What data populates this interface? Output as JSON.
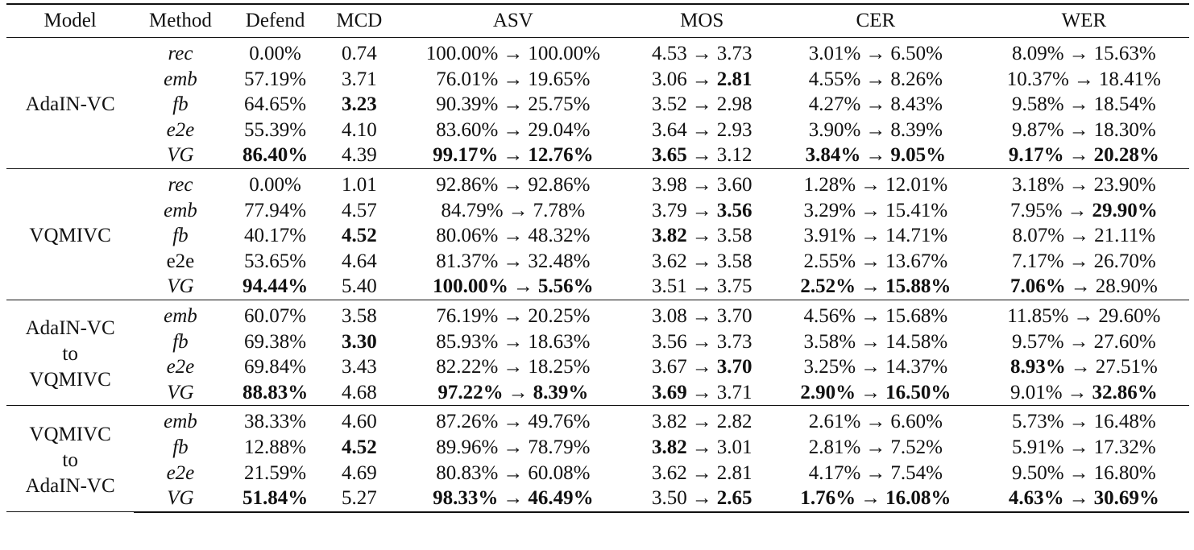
{
  "headers": [
    "Model",
    "Method",
    "Defend",
    "MCD",
    "ASV",
    "MOS",
    "CER",
    "WER"
  ],
  "groups": [
    {
      "model": [
        "AdaIN-VC"
      ],
      "rows": [
        {
          "method": "rec",
          "italic": true,
          "defend": "0.00%",
          "mcd": "0.74",
          "asv": [
            "100.00%",
            "100.00%"
          ],
          "mos": [
            "4.53",
            "3.73"
          ],
          "cer": [
            "3.01%",
            "6.50%"
          ],
          "wer": [
            "8.09%",
            "15.63%"
          ]
        },
        {
          "method": "emb",
          "italic": true,
          "defend": "57.19%",
          "mcd": "3.71",
          "asv": [
            "76.01%",
            "19.65%"
          ],
          "mos": [
            "3.06",
            "2.81"
          ],
          "cer": [
            "4.55%",
            "8.26%"
          ],
          "wer": [
            "10.37%",
            "18.41%"
          ]
        },
        {
          "method": "fb",
          "italic": true,
          "defend": "64.65%",
          "mcd": "3.23",
          "asv": [
            "90.39%",
            "25.75%"
          ],
          "mos": [
            "3.52",
            "2.98"
          ],
          "cer": [
            "4.27%",
            "8.43%"
          ],
          "wer": [
            "9.58%",
            "18.54%"
          ]
        },
        {
          "method": "e2e",
          "italic": true,
          "defend": "55.39%",
          "mcd": "4.10",
          "asv": [
            "83.60%",
            "29.04%"
          ],
          "mos": [
            "3.64",
            "2.93"
          ],
          "cer": [
            "3.90%",
            "8.39%"
          ],
          "wer": [
            "9.87%",
            "18.30%"
          ]
        },
        {
          "method": "VG",
          "italic": true,
          "defend": "86.40%",
          "mcd": "4.39",
          "asv": [
            "99.17%",
            "12.76%"
          ],
          "mos": [
            "3.65",
            "3.12"
          ],
          "cer": [
            "3.84%",
            "9.05%"
          ],
          "wer": [
            "9.17%",
            "20.28%"
          ]
        }
      ]
    },
    {
      "model": [
        "VQMIVC"
      ],
      "rows": [
        {
          "method": "rec",
          "italic": true,
          "defend": "0.00%",
          "mcd": "1.01",
          "asv": [
            "92.86%",
            "92.86%"
          ],
          "mos": [
            "3.98",
            "3.60"
          ],
          "cer": [
            "1.28%",
            "12.01%"
          ],
          "wer": [
            "3.18%",
            "23.90%"
          ]
        },
        {
          "method": "emb",
          "italic": true,
          "defend": "77.94%",
          "mcd": "4.57",
          "asv": [
            "84.79%",
            "7.78%"
          ],
          "mos": [
            "3.79",
            "3.56"
          ],
          "cer": [
            "3.29%",
            "15.41%"
          ],
          "wer": [
            "7.95%",
            "29.90%"
          ]
        },
        {
          "method": "fb",
          "italic": true,
          "defend": "40.17%",
          "mcd": "4.52",
          "asv": [
            "80.06%",
            "48.32%"
          ],
          "mos": [
            "3.82",
            "3.58"
          ],
          "cer": [
            "3.91%",
            "14.71%"
          ],
          "wer": [
            "8.07%",
            "21.11%"
          ]
        },
        {
          "method": "e2e",
          "italic": false,
          "defend": "53.65%",
          "mcd": "4.64",
          "asv": [
            "81.37%",
            "32.48%"
          ],
          "mos": [
            "3.62",
            "3.58"
          ],
          "cer": [
            "2.55%",
            "13.67%"
          ],
          "wer": [
            "7.17%",
            "26.70%"
          ]
        },
        {
          "method": "VG",
          "italic": true,
          "defend": "94.44%",
          "mcd": "5.40",
          "asv": [
            "100.00%",
            "5.56%"
          ],
          "mos": [
            "3.51",
            "3.75"
          ],
          "cer": [
            "2.52%",
            "15.88%"
          ],
          "wer": [
            "7.06%",
            "28.90%"
          ]
        }
      ]
    },
    {
      "model": [
        "AdaIN-VC",
        "to",
        "VQMIVC"
      ],
      "rows": [
        {
          "method": "emb",
          "italic": true,
          "defend": "60.07%",
          "mcd": "3.58",
          "asv": [
            "76.19%",
            "20.25%"
          ],
          "mos": [
            "3.08",
            "3.70"
          ],
          "cer": [
            "4.56%",
            "15.68%"
          ],
          "wer": [
            "11.85%",
            "29.60%"
          ]
        },
        {
          "method": "fb",
          "italic": true,
          "defend": "69.38%",
          "mcd": "3.30",
          "asv": [
            "85.93%",
            "18.63%"
          ],
          "mos": [
            "3.56",
            "3.73"
          ],
          "cer": [
            "3.58%",
            "14.58%"
          ],
          "wer": [
            "9.57%",
            "27.60%"
          ]
        },
        {
          "method": "e2e",
          "italic": true,
          "defend": "69.84%",
          "mcd": "3.43",
          "asv": [
            "82.22%",
            "18.25%"
          ],
          "mos": [
            "3.67",
            "3.70"
          ],
          "cer": [
            "3.25%",
            "14.37%"
          ],
          "wer": [
            "8.93%",
            "27.51%"
          ]
        },
        {
          "method": "VG",
          "italic": true,
          "defend": "88.83%",
          "mcd": "4.68",
          "asv": [
            "97.22%",
            "8.39%"
          ],
          "mos": [
            "3.69",
            "3.71"
          ],
          "cer": [
            "2.90%",
            "16.50%"
          ],
          "wer": [
            "9.01%",
            "32.86%"
          ]
        }
      ]
    },
    {
      "model": [
        "VQMIVC",
        "to",
        "AdaIN-VC"
      ],
      "rows": [
        {
          "method": "emb",
          "italic": true,
          "defend": "38.33%",
          "mcd": "4.60",
          "asv": [
            "87.26%",
            "49.76%"
          ],
          "mos": [
            "3.82",
            "2.82"
          ],
          "cer": [
            "2.61%",
            "6.60%"
          ],
          "wer": [
            "5.73%",
            "16.48%"
          ]
        },
        {
          "method": "fb",
          "italic": true,
          "defend": "12.88%",
          "mcd": "4.52",
          "asv": [
            "89.96%",
            "78.79%"
          ],
          "mos": [
            "3.82",
            "3.01"
          ],
          "cer": [
            "2.81%",
            "7.52%"
          ],
          "wer": [
            "5.91%",
            "17.32%"
          ]
        },
        {
          "method": "e2e",
          "italic": true,
          "defend": "21.59%",
          "mcd": "4.69",
          "asv": [
            "80.83%",
            "60.08%"
          ],
          "mos": [
            "3.62",
            "2.81"
          ],
          "cer": [
            "4.17%",
            "7.54%"
          ],
          "wer": [
            "9.50%",
            "16.80%"
          ]
        },
        {
          "method": "VG",
          "italic": true,
          "defend": "51.84%",
          "mcd": "5.27",
          "asv": [
            "98.33%",
            "46.49%"
          ],
          "mos": [
            "3.50",
            "2.65"
          ],
          "cer": [
            "1.76%",
            "16.08%"
          ],
          "wer": [
            "4.63%",
            "30.69%"
          ]
        }
      ]
    }
  ],
  "bold": [
    "0.1.mos.1",
    "0.2.mcd",
    "0.4.defend",
    "0.4.asv.0",
    "0.4.asv.1",
    "0.4.mos.0",
    "0.4.cer.0",
    "0.4.cer.1",
    "0.4.wer.0",
    "0.4.wer.1",
    "1.1.mos.1",
    "1.1.wer.1",
    "1.2.mcd",
    "1.2.mos.0",
    "1.4.defend",
    "1.4.asv.0",
    "1.4.asv.1",
    "1.4.cer.0",
    "1.4.cer.1",
    "1.4.wer.0",
    "2.1.mcd",
    "2.2.mos.1",
    "2.2.wer.0",
    "2.3.defend",
    "2.3.asv.0",
    "2.3.asv.1",
    "2.3.mos.0",
    "2.3.cer.0",
    "2.3.cer.1",
    "2.3.wer.1",
    "3.1.mcd",
    "3.1.mos.0",
    "3.3.defend",
    "3.3.asv.0",
    "3.3.asv.1",
    "3.3.mos.1",
    "3.3.cer.0",
    "3.3.cer.1",
    "3.3.wer.0",
    "3.3.wer.1"
  ],
  "arrow": "→"
}
